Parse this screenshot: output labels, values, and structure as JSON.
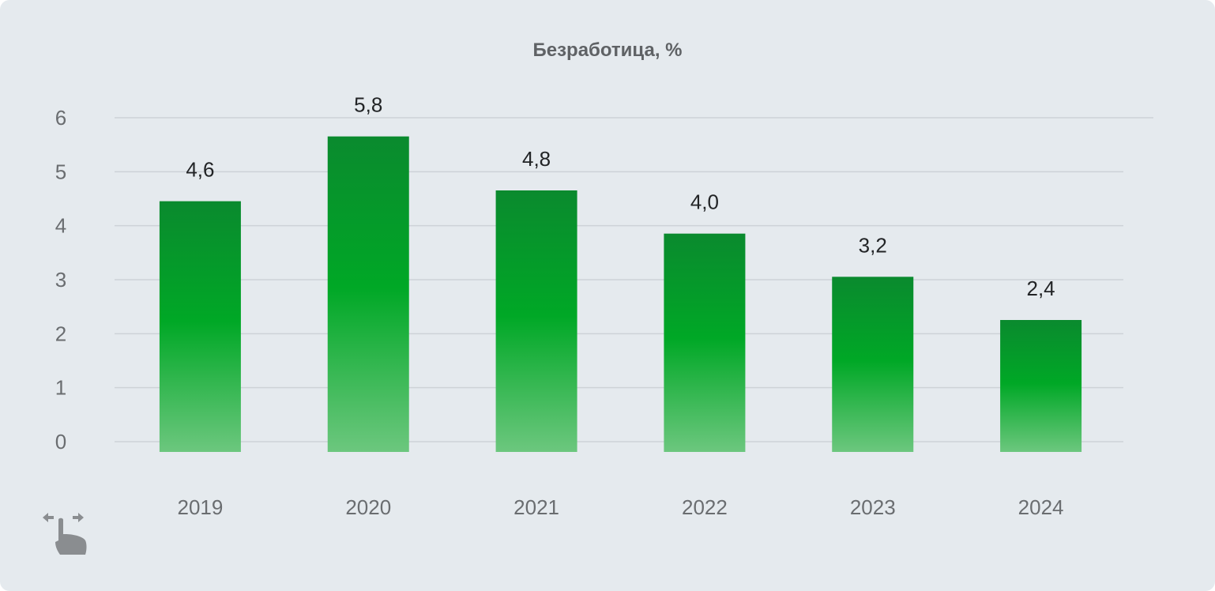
{
  "chart_data": {
    "type": "bar",
    "title": "Безработица, %",
    "categories": [
      "2019",
      "2020",
      "2021",
      "2022",
      "2023",
      "2024"
    ],
    "values": [
      4.6,
      5.8,
      4.8,
      4.0,
      3.2,
      2.4
    ],
    "data_labels": [
      "4,6",
      "5,8",
      "4,8",
      "4,0",
      "3,2",
      "2,4"
    ],
    "y_ticks": [
      "0",
      "1",
      "2",
      "3",
      "4",
      "5",
      "6"
    ],
    "ylim": [
      0,
      6
    ],
    "xlabel": "",
    "ylabel": "",
    "grid": true,
    "legend": "none",
    "colors": {
      "bar_top": "#0a8a2e",
      "bar_mid": "#00a826",
      "bar_bottom": "#6cc77e",
      "background": "#e5eaee",
      "gridline": "#cdd2d7"
    }
  },
  "ui": {
    "swipe_hint_icon": "swipe-horizontal-hand-icon"
  }
}
